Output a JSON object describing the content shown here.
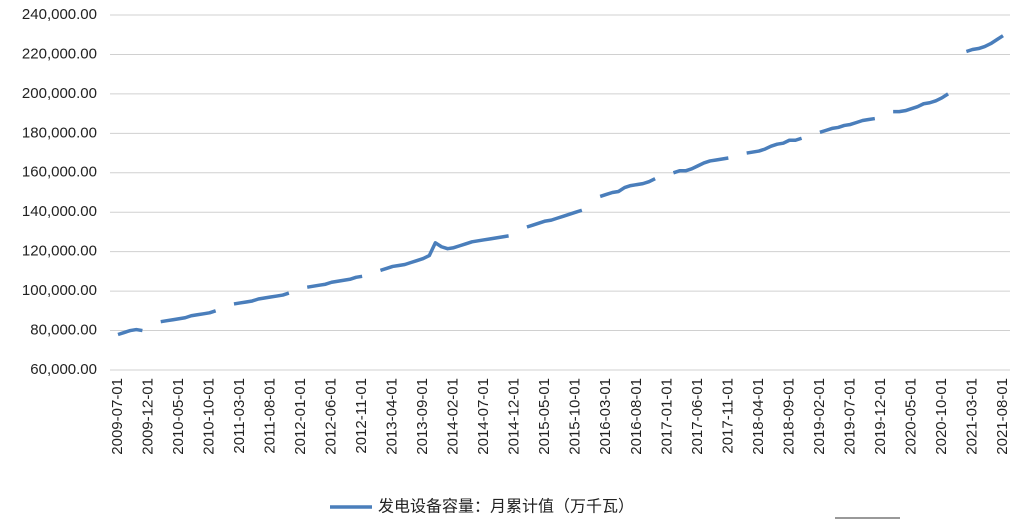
{
  "chart_data": {
    "type": "line",
    "legend": "bottom",
    "grid": true,
    "ylim": [
      60000,
      240000
    ],
    "yticks": [
      {
        "value": 60000,
        "label": "60,000.00"
      },
      {
        "value": 80000,
        "label": "80,000.00"
      },
      {
        "value": 100000,
        "label": "100,000.00"
      },
      {
        "value": 120000,
        "label": "120,000.00"
      },
      {
        "value": 140000,
        "label": "140,000.00"
      },
      {
        "value": 160000,
        "label": "160,000.00"
      },
      {
        "value": 180000,
        "label": "180,000.00"
      },
      {
        "value": 200000,
        "label": "200,000.00"
      },
      {
        "value": 220000,
        "label": "220,000.00"
      },
      {
        "value": 240000,
        "label": "240,000.00"
      }
    ],
    "categories": [
      "2009-07-01",
      null,
      null,
      null,
      null,
      "2009-12-01",
      null,
      null,
      null,
      null,
      "2010-05-01",
      null,
      null,
      null,
      null,
      "2010-10-01",
      null,
      null,
      null,
      null,
      "2011-03-01",
      null,
      null,
      null,
      null,
      "2011-08-01",
      null,
      null,
      null,
      null,
      "2012-01-01",
      null,
      null,
      null,
      null,
      "2012-06-01",
      null,
      null,
      null,
      null,
      "2012-11-01",
      null,
      null,
      null,
      null,
      "2013-04-01",
      null,
      null,
      null,
      null,
      "2013-09-01",
      null,
      null,
      null,
      null,
      "2014-02-01",
      null,
      null,
      null,
      null,
      "2014-07-01",
      null,
      null,
      null,
      null,
      "2014-12-01",
      null,
      null,
      null,
      null,
      "2015-05-01",
      null,
      null,
      null,
      null,
      "2015-10-01",
      null,
      null,
      null,
      null,
      "2016-03-01",
      null,
      null,
      null,
      null,
      "2016-08-01",
      null,
      null,
      null,
      null,
      "2017-01-01",
      null,
      null,
      null,
      null,
      "2017-06-01",
      null,
      null,
      null,
      null,
      "2017-11-01",
      null,
      null,
      null,
      null,
      "2018-04-01",
      null,
      null,
      null,
      null,
      "2018-09-01",
      null,
      null,
      null,
      null,
      "2019-02-01",
      null,
      null,
      null,
      null,
      "2019-07-01",
      null,
      null,
      null,
      null,
      "2019-12-01",
      null,
      null,
      null,
      null,
      "2020-05-01",
      null,
      null,
      null,
      null,
      "2020-10-01",
      null,
      null,
      null,
      null,
      "2021-03-01",
      null,
      null,
      null,
      null,
      "2021-08-01"
    ],
    "series": [
      {
        "name": "发电设备容量：月累计值（万千瓦）",
        "color": "#4a7ebb",
        "values": [
          78000,
          79000,
          80000,
          80500,
          80000,
          null,
          null,
          84500,
          85000,
          85500,
          86000,
          86500,
          87500,
          88000,
          88500,
          89000,
          90000,
          null,
          null,
          93500,
          94000,
          94500,
          95000,
          96000,
          96500,
          97000,
          97500,
          98000,
          99000,
          null,
          null,
          102000,
          102500,
          103000,
          103500,
          104500,
          105000,
          105500,
          106000,
          107000,
          107500,
          null,
          null,
          110500,
          111500,
          112500,
          113000,
          113500,
          114500,
          115500,
          116500,
          118000,
          124500,
          122500,
          121500,
          122000,
          123000,
          124000,
          125000,
          125500,
          126000,
          126500,
          127000,
          127500,
          128000,
          null,
          null,
          132500,
          133500,
          134500,
          135500,
          136000,
          137000,
          138000,
          139000,
          140000,
          141000,
          null,
          null,
          148000,
          149000,
          150000,
          150500,
          152500,
          153500,
          154000,
          154500,
          155500,
          157000,
          null,
          null,
          160000,
          161000,
          161000,
          162000,
          163500,
          165000,
          166000,
          166500,
          167000,
          167500,
          null,
          null,
          170000,
          170500,
          171000,
          172000,
          173500,
          174500,
          175000,
          176500,
          176500,
          177500,
          null,
          null,
          180500,
          181500,
          182500,
          183000,
          184000,
          184500,
          185500,
          186500,
          187000,
          187500,
          null,
          null,
          191000,
          191000,
          191500,
          192500,
          193500,
          195000,
          195500,
          196500,
          198000,
          200000,
          null,
          null,
          221500,
          222500,
          223000,
          224000,
          225500,
          227500,
          229500
        ]
      }
    ]
  }
}
